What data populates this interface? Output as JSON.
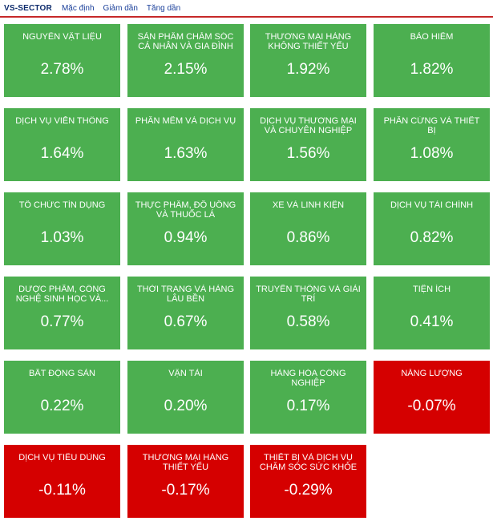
{
  "header": {
    "brand": "VS-SECTOR",
    "sort_default": "Mặc định",
    "sort_desc": "Giảm dần",
    "sort_asc": "Tăng dần",
    "accent_color": "#c62828"
  },
  "colors": {
    "positive": "#4caf50",
    "negative": "#d50000",
    "text": "#ffffff"
  },
  "sectors": [
    {
      "name": "Nguyên vật liệu",
      "change": "2.78%",
      "trend": "up"
    },
    {
      "name": "Sản phẩm chăm sóc cá nhân và gia đình",
      "change": "2.15%",
      "trend": "up"
    },
    {
      "name": "Thương mại hàng không thiết yếu",
      "change": "1.92%",
      "trend": "up"
    },
    {
      "name": "Bảo hiểm",
      "change": "1.82%",
      "trend": "up"
    },
    {
      "name": "Dịch vụ viễn thông",
      "change": "1.64%",
      "trend": "up"
    },
    {
      "name": "Phần mềm và dịch vụ",
      "change": "1.63%",
      "trend": "up"
    },
    {
      "name": "Dịch vụ thương mại và chuyên nghiệp",
      "change": "1.56%",
      "trend": "up"
    },
    {
      "name": "Phần cứng và thiết bị",
      "change": "1.08%",
      "trend": "up"
    },
    {
      "name": "Tổ chức tín dụng",
      "change": "1.03%",
      "trend": "up"
    },
    {
      "name": "Thực phẩm, đồ uống và thuốc lá",
      "change": "0.94%",
      "trend": "up"
    },
    {
      "name": "Xe và linh kiện",
      "change": "0.86%",
      "trend": "up"
    },
    {
      "name": "Dịch vụ tài chính",
      "change": "0.82%",
      "trend": "up"
    },
    {
      "name": "Dược phẩm, công nghệ sinh học và...",
      "change": "0.77%",
      "trend": "up"
    },
    {
      "name": "Thời trang và hàng lâu bền",
      "change": "0.67%",
      "trend": "up"
    },
    {
      "name": "Truyền thông và giải trí",
      "change": "0.58%",
      "trend": "up"
    },
    {
      "name": "Tiện ích",
      "change": "0.41%",
      "trend": "up"
    },
    {
      "name": "Bất động sản",
      "change": "0.22%",
      "trend": "up"
    },
    {
      "name": "Vận tải",
      "change": "0.20%",
      "trend": "up"
    },
    {
      "name": "Hàng hóa công nghiệp",
      "change": "0.17%",
      "trend": "up"
    },
    {
      "name": "Năng lượng",
      "change": "-0.07%",
      "trend": "down"
    },
    {
      "name": "Dịch vụ tiêu dùng",
      "change": "-0.11%",
      "trend": "down"
    },
    {
      "name": "Thương mại hàng thiết yếu",
      "change": "-0.17%",
      "trend": "down"
    },
    {
      "name": "Thiết bị và dịch vụ chăm sóc sức khỏe",
      "change": "-0.29%",
      "trend": "down"
    }
  ]
}
